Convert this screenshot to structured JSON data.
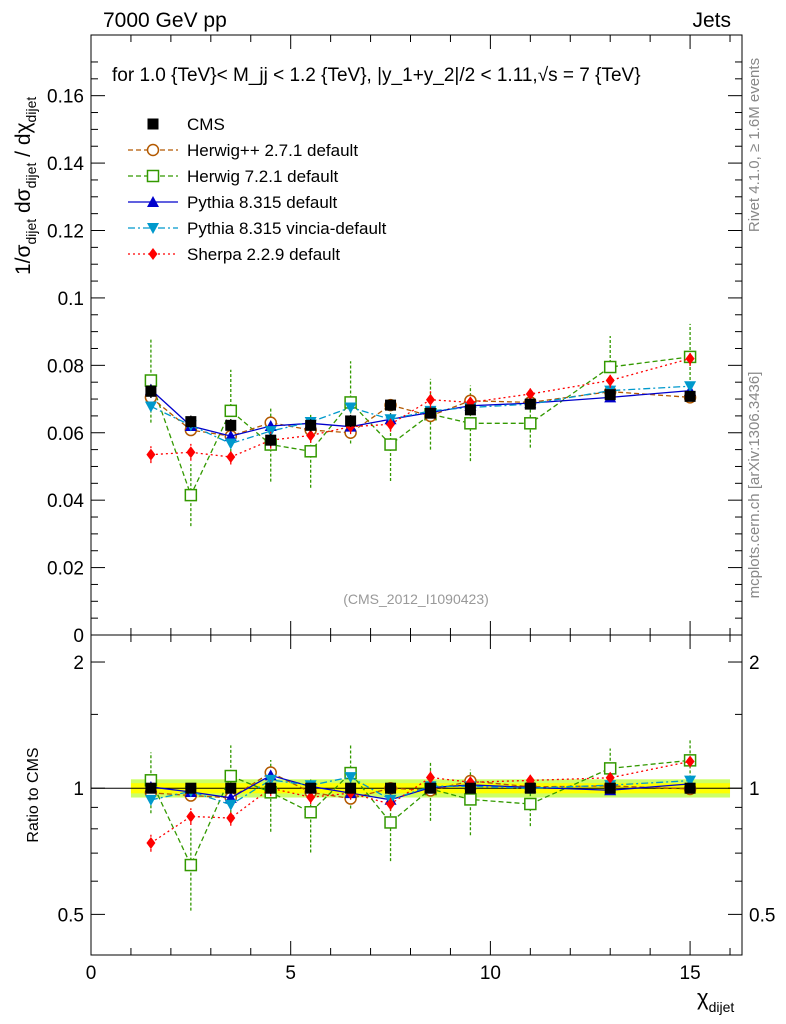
{
  "header": {
    "energy": "7000 GeV pp",
    "category": "Jets",
    "title": "for 1.0 {TeV}< M_jj < 1.2 {TeV}, |y_1+y_2|/2 < 1.11,√s = 7 {TeV}",
    "side_label_top": "Rivet 4.1.0, ≥ 1.6M events",
    "side_label_bottom": "mcplots.cern.ch [arXiv:1306.3436]",
    "analysis_tag": "(CMS_2012_I1090423)"
  },
  "chart_data": {
    "type": "scatter",
    "title": "for 1.0 {TeV}< M_jj < 1.2 {TeV}, |y_1+y_2|/2 < 1.11,√s = 7 {TeV}",
    "xlabel": "χ_dijet",
    "ylabel": "1/σ_dijet dσ_dijet / dχ_dijet",
    "ratio_ylabel": "Ratio to CMS",
    "xlim": [
      0,
      16.3
    ],
    "ylim": [
      0,
      0.178
    ],
    "ratio_ylim": [
      0.4,
      2.32
    ],
    "x_ticks": [
      "0",
      "5",
      "10",
      "15"
    ],
    "y_ticks": [
      "0",
      "0.02",
      "0.04",
      "0.06",
      "0.08",
      "0.1",
      "0.12",
      "0.14",
      "0.16"
    ],
    "ratio_ticks": [
      "0.5",
      "1",
      "2"
    ],
    "x": [
      1.5,
      2.5,
      3.5,
      4.5,
      5.5,
      6.5,
      7.5,
      8.5,
      9.5,
      11.0,
      13.0,
      15.0
    ],
    "series": [
      {
        "name": "CMS",
        "color": "#000000",
        "marker": "square-filled",
        "style": "none",
        "values": [
          0.0723,
          0.0633,
          0.0622,
          0.0578,
          0.0622,
          0.0635,
          0.0682,
          0.0658,
          0.0668,
          0.0685,
          0.0713,
          0.0708
        ],
        "errors": [
          0.002,
          0.0018,
          0.0018,
          0.0018,
          0.0018,
          0.0018,
          0.0015,
          0.0015,
          0.0015,
          0.0015,
          0.0015,
          0.0015
        ]
      },
      {
        "name": "Herwig++ 2.7.1 default",
        "color": "#b35900",
        "marker": "circle-open",
        "style": "dashed",
        "values": [
          0.0705,
          0.0608,
          0.059,
          0.063,
          0.0608,
          0.06,
          0.0682,
          0.065,
          0.0695,
          0.069,
          0.0722,
          0.0705
        ],
        "errors": [
          0.0015,
          0.0012,
          0.0012,
          0.0012,
          0.0012,
          0.0012,
          0.0012,
          0.0012,
          0.0012,
          0.0012,
          0.0012,
          0.0012
        ]
      },
      {
        "name": "Herwig 7.2.1 default",
        "color": "#339900",
        "marker": "square-open",
        "style": "dashed",
        "values": [
          0.0755,
          0.0415,
          0.0665,
          0.0565,
          0.0545,
          0.069,
          0.0565,
          0.0655,
          0.0628,
          0.0628,
          0.0795,
          0.0825
        ],
        "errors": [
          0.0125,
          0.0092,
          0.0122,
          0.011,
          0.0108,
          0.0122,
          0.0108,
          0.0105,
          0.0112,
          0.0072,
          0.0092,
          0.0098
        ]
      },
      {
        "name": "Pythia 8.315 default",
        "color": "#0000cc",
        "marker": "triangle-up",
        "style": "solid",
        "values": [
          0.0728,
          0.062,
          0.059,
          0.062,
          0.0628,
          0.0618,
          0.064,
          0.066,
          0.068,
          0.0688,
          0.0705,
          0.0725
        ],
        "errors": [
          0.001,
          0.001,
          0.001,
          0.001,
          0.001,
          0.001,
          0.001,
          0.001,
          0.001,
          0.001,
          0.001,
          0.001
        ]
      },
      {
        "name": "Pythia 8.315 vincia-default",
        "color": "#0099cc",
        "marker": "triangle-down",
        "style": "dashdot",
        "values": [
          0.0678,
          0.0622,
          0.0568,
          0.0605,
          0.0632,
          0.0675,
          0.064,
          0.0665,
          0.0675,
          0.0685,
          0.0725,
          0.0738
        ],
        "errors": [
          0.0012,
          0.001,
          0.001,
          0.001,
          0.001,
          0.001,
          0.001,
          0.001,
          0.001,
          0.001,
          0.001,
          0.001
        ]
      },
      {
        "name": "Sherpa 2.2.9 default",
        "color": "#ff0000",
        "marker": "diamond",
        "style": "dotted",
        "values": [
          0.0535,
          0.0542,
          0.0528,
          0.0578,
          0.0592,
          0.0618,
          0.0625,
          0.0698,
          0.069,
          0.0715,
          0.0755,
          0.082
        ],
        "errors": [
          0.0025,
          0.0025,
          0.0022,
          0.0025,
          0.0022,
          0.0022,
          0.0022,
          0.0025,
          0.0022,
          0.0022,
          0.0022,
          0.0022
        ]
      }
    ],
    "ratio_band": {
      "x_range": [
        1.0,
        16.0
      ],
      "inner_halfwidth": 0.028,
      "outer_halfwidth": 0.05,
      "inner_color": "#ffff00",
      "outer_color": "#ccff66"
    }
  }
}
